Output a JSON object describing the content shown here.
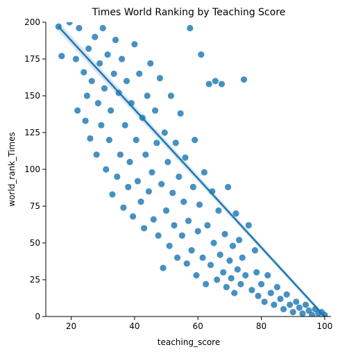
{
  "chart_data": {
    "type": "scatter",
    "title": "Times World Ranking by Teaching Score",
    "xlabel": "teaching_score",
    "ylabel": "world_rank_Times",
    "xlim": [
      12,
      102
    ],
    "ylim": [
      0,
      200
    ],
    "xticks": [
      20,
      40,
      60,
      80,
      100
    ],
    "yticks": [
      0,
      25,
      50,
      75,
      100,
      125,
      150,
      175,
      200
    ],
    "grid": false,
    "point_color": "#1f77b4",
    "regression_line": {
      "x": [
        16,
        100
      ],
      "y": [
        197,
        0
      ],
      "color": "#1f77b4"
    },
    "points": [
      [
        16.0,
        197
      ],
      [
        17.0,
        177
      ],
      [
        19.5,
        200
      ],
      [
        21.5,
        175
      ],
      [
        22.5,
        196
      ],
      [
        22.0,
        140
      ],
      [
        24.0,
        166
      ],
      [
        24.5,
        133
      ],
      [
        25.0,
        150
      ],
      [
        25.5,
        182
      ],
      [
        26.0,
        121
      ],
      [
        26.5,
        160
      ],
      [
        27.5,
        190
      ],
      [
        28.0,
        110
      ],
      [
        28.5,
        145
      ],
      [
        29.0,
        172
      ],
      [
        29.5,
        130
      ],
      [
        30.0,
        196
      ],
      [
        30.5,
        155
      ],
      [
        31.0,
        100
      ],
      [
        31.5,
        178
      ],
      [
        32.0,
        120
      ],
      [
        32.5,
        140
      ],
      [
        33.0,
        83
      ],
      [
        33.5,
        165
      ],
      [
        34.0,
        188
      ],
      [
        34.5,
        95
      ],
      [
        35.0,
        152
      ],
      [
        35.5,
        110
      ],
      [
        36.0,
        175
      ],
      [
        36.5,
        74
      ],
      [
        37.0,
        130
      ],
      [
        37.5,
        160
      ],
      [
        38.0,
        88
      ],
      [
        38.5,
        105
      ],
      [
        39.0,
        145
      ],
      [
        39.5,
        68
      ],
      [
        40.0,
        185
      ],
      [
        40.5,
        120
      ],
      [
        41.0,
        92
      ],
      [
        41.5,
        165
      ],
      [
        42.0,
        78
      ],
      [
        42.5,
        135
      ],
      [
        43.0,
        60
      ],
      [
        43.5,
        110
      ],
      [
        44.0,
        150
      ],
      [
        44.5,
        85
      ],
      [
        45.0,
        172
      ],
      [
        45.5,
        98
      ],
      [
        46.0,
        66
      ],
      [
        46.5,
        140
      ],
      [
        47.0,
        118
      ],
      [
        47.5,
        55
      ],
      [
        48.0,
        162
      ],
      [
        48.5,
        90
      ],
      [
        49.0,
        33
      ],
      [
        49.5,
        125
      ],
      [
        50.0,
        72
      ],
      [
        50.5,
        105
      ],
      [
        51.0,
        48
      ],
      [
        51.5,
        150
      ],
      [
        52.0,
        84
      ],
      [
        52.5,
        62
      ],
      [
        53.0,
        118
      ],
      [
        53.5,
        40
      ],
      [
        54.0,
        95
      ],
      [
        54.5,
        138
      ],
      [
        55.0,
        55
      ],
      [
        55.5,
        78
      ],
      [
        56.0,
        108
      ],
      [
        56.5,
        36
      ],
      [
        57.0,
        65
      ],
      [
        57.5,
        196
      ],
      [
        58.0,
        45
      ],
      [
        58.5,
        88
      ],
      [
        59.0,
        120
      ],
      [
        59.5,
        28
      ],
      [
        60.0,
        58
      ],
      [
        60.5,
        76
      ],
      [
        61.0,
        178
      ],
      [
        61.5,
        40
      ],
      [
        62.0,
        98
      ],
      [
        62.5,
        22
      ],
      [
        63.0,
        62
      ],
      [
        63.5,
        158
      ],
      [
        64.0,
        35
      ],
      [
        64.5,
        85
      ],
      [
        65.0,
        50
      ],
      [
        65.5,
        160
      ],
      [
        66.0,
        25
      ],
      [
        66.5,
        72
      ],
      [
        67.0,
        42
      ],
      [
        67.5,
        158
      ],
      [
        68.0,
        30
      ],
      [
        68.5,
        56
      ],
      [
        69.0,
        20
      ],
      [
        69.5,
        88
      ],
      [
        70.0,
        38
      ],
      [
        70.5,
        26
      ],
      [
        71.0,
        48
      ],
      [
        71.5,
        16
      ],
      [
        72.0,
        70
      ],
      [
        72.5,
        32
      ],
      [
        73.0,
        52
      ],
      [
        73.5,
        22
      ],
      [
        74.0,
        40
      ],
      [
        74.5,
        161
      ],
      [
        75.0,
        28
      ],
      [
        76.0,
        62
      ],
      [
        77.0,
        18
      ],
      [
        78.0,
        45
      ],
      [
        78.5,
        30
      ],
      [
        79.0,
        14
      ],
      [
        80.0,
        22
      ],
      [
        81.0,
        10
      ],
      [
        82.0,
        28
      ],
      [
        83.0,
        16
      ],
      [
        84.0,
        8
      ],
      [
        85.0,
        20
      ],
      [
        86.0,
        12
      ],
      [
        87.0,
        5
      ],
      [
        88.0,
        15
      ],
      [
        89.0,
        8
      ],
      [
        90.0,
        3
      ],
      [
        91.0,
        10
      ],
      [
        92.0,
        6
      ],
      [
        93.0,
        2
      ],
      [
        94.0,
        8
      ],
      [
        95.0,
        4
      ],
      [
        96.0,
        1
      ],
      [
        97.0,
        5
      ],
      [
        98.0,
        2
      ],
      [
        99.0,
        3
      ],
      [
        100.0,
        1
      ]
    ]
  }
}
